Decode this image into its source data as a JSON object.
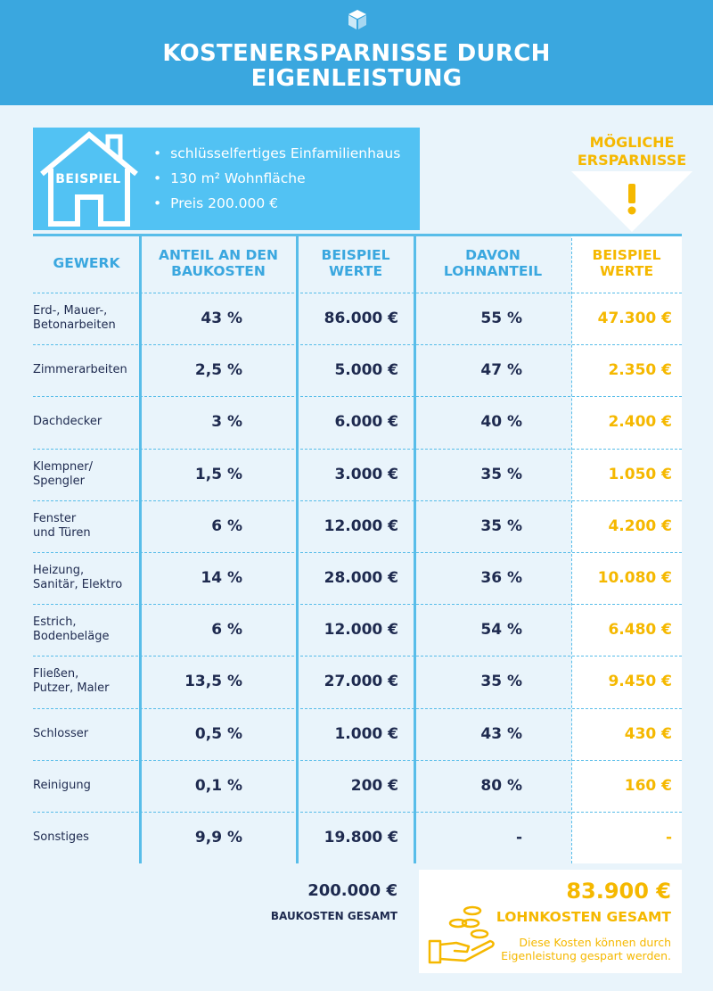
{
  "header": {
    "title_line1": "KOSTENERSPARNISSE DURCH",
    "title_line2": "EIGENLEISTUNG",
    "logo_icon": "cube-icon"
  },
  "example": {
    "label": "BEISPIEL",
    "icon": "house-icon",
    "items": [
      "schlüsselfertiges Einfamilienhaus",
      "130 m² Wohnfläche",
      "Preis 200.000 €"
    ]
  },
  "savings_header": {
    "line1": "MÖGLICHE",
    "line2": "ERSPARNISSE",
    "icon": "exclamation-icon"
  },
  "table": {
    "columns": {
      "gewerk": "GEWERK",
      "anteil_1": "ANTEIL AN DEN",
      "anteil_2": "BAUKOSTEN",
      "beispiel_1": "BEISPIEL",
      "beispiel_2": "WERTE",
      "lohn_1": "DAVON",
      "lohn_2": "LOHNANTEIL",
      "spar_1": "BEISPIEL",
      "spar_2": "WERTE"
    },
    "rows": [
      {
        "name1": "Erd-, Mauer-,",
        "name2": "Betonarbeiten",
        "share": "43 %",
        "value": "86.000 €",
        "labor": "55 %",
        "saving": "47.300 €"
      },
      {
        "name1": "Zimmerarbeiten",
        "name2": "",
        "share": "2,5 %",
        "value": "5.000 €",
        "labor": "47 %",
        "saving": "2.350 €"
      },
      {
        "name1": "Dachdecker",
        "name2": "",
        "share": "3 %",
        "value": "6.000 €",
        "labor": "40 %",
        "saving": "2.400 €"
      },
      {
        "name1": "Klempner/",
        "name2": "Spengler",
        "share": "1,5 %",
        "value": "3.000 €",
        "labor": "35 %",
        "saving": "1.050 €"
      },
      {
        "name1": "Fenster",
        "name2": "und Türen",
        "share": "6 %",
        "value": "12.000 €",
        "labor": "35 %",
        "saving": "4.200 €"
      },
      {
        "name1": "Heizung,",
        "name2": "Sanitär, Elektro",
        "share": "14 %",
        "value": "28.000 €",
        "labor": "36 %",
        "saving": "10.080 €"
      },
      {
        "name1": "Estrich,",
        "name2": "Bodenbeläge",
        "share": "6 %",
        "value": "12.000 €",
        "labor": "54 %",
        "saving": "6.480 €"
      },
      {
        "name1": "Fließen,",
        "name2": "Putzer, Maler",
        "share": "13,5 %",
        "value": "27.000 €",
        "labor": "35 %",
        "saving": "9.450 €"
      },
      {
        "name1": "Schlosser",
        "name2": "",
        "share": "0,5 %",
        "value": "1.000 €",
        "labor": "43 %",
        "saving": "430 €"
      },
      {
        "name1": "Reinigung",
        "name2": "",
        "share": "0,1 %",
        "value": "200 €",
        "labor": "80 %",
        "saving": "160 €"
      },
      {
        "name1": "Sonstiges",
        "name2": "",
        "share": "9,9 %",
        "value": "19.800 €",
        "labor": "-",
        "saving": "-"
      }
    ]
  },
  "totals": {
    "base_value": "200.000 €",
    "base_label": "BAUKOSTEN GESAMT",
    "savings_value": "83.900 €",
    "savings_label": "LOHNKOSTEN GESAMT",
    "note_line1": "Diese Kosten können durch",
    "note_line2": "Eigenleistung gespart werden.",
    "icon": "hand-coins-icon"
  },
  "colors": {
    "header_blue": "#3aa7df",
    "box_blue": "#52c2f3",
    "navy": "#1e2a4f",
    "gold": "#f5b800",
    "background": "#e9f4fb"
  }
}
